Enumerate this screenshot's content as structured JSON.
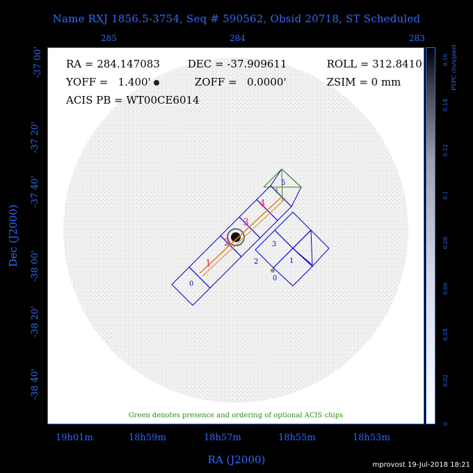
{
  "title": "Name RXJ 1856.5-3754, Seq # 590562, Obsid 20718, ST Scheduled",
  "ra_top_ticks": [
    "285",
    "284",
    "283"
  ],
  "ra_bottom_ticks": [
    "19h01m",
    "18h59m",
    "18h57m",
    "18h55m",
    "18h53m"
  ],
  "dec_ticks": [
    "-37 00'",
    "-37 20'",
    "-37 40'",
    "-38 00'",
    "-38 20'",
    "-38 40'"
  ],
  "x_label": "RA (J2000)",
  "y_label": "Dec (J2000)",
  "info": {
    "ra": "RA = 284.147083",
    "dec": "DEC = -37.909611",
    "roll": "ROLL = 312.8410",
    "yoff": "YOFF =   1.400'",
    "zoff": "ZOFF =   0.0000'",
    "zsim": "ZSIM = 0 mm",
    "acis_pb": "ACIS PB = WT00CE6014"
  },
  "note": "Green denotes presence and ordering of optional ACIS chips",
  "colorbar": {
    "unit": "PSPC cts/s/pixel",
    "ticks": [
      "0",
      "0.02",
      "0.04",
      "0.06",
      "0.08",
      "0.1",
      "0.12",
      "0.14",
      "0.16"
    ]
  },
  "chips": {
    "s_labels": [
      "0",
      "1",
      "2",
      "3",
      "4",
      "5"
    ],
    "i_labels": [
      "0",
      "1",
      "2",
      "3"
    ],
    "optional_label": "1",
    "focus_labels": [
      "1",
      "2",
      "3",
      "4"
    ]
  },
  "footer": "mprovost 19-Jul-2018 18:21",
  "colors": {
    "axis": "#2f6bff",
    "chip_outline": "#0000cc",
    "optional": "#2d8a1a",
    "track": "#e08020",
    "focus": "#ff2060"
  }
}
